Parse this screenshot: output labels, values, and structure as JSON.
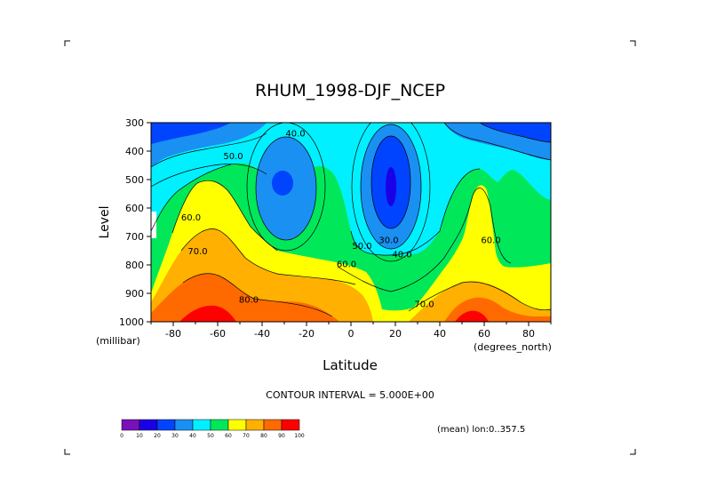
{
  "chart_data": {
    "type": "contour",
    "title": "RHUM_1998-DJF_NCEP",
    "xlabel": "Latitude",
    "ylabel": "Level",
    "x_unit": "(degrees_north)",
    "y_unit": "(millibar)",
    "xlim": [
      -90,
      90
    ],
    "ylim": [
      1000,
      300
    ],
    "x_ticks": [
      -80,
      -60,
      -40,
      -20,
      0,
      20,
      40,
      60,
      80
    ],
    "x_tick_labels": [
      "-80",
      "-60",
      "-40",
      "-20",
      "0",
      "20",
      "40",
      "60",
      "80"
    ],
    "y_ticks": [
      300,
      400,
      500,
      600,
      700,
      800,
      900,
      1000
    ],
    "y_tick_labels": [
      "300",
      "400",
      "500",
      "600",
      "700",
      "800",
      "900",
      "1000"
    ],
    "contour_interval_text": "CONTOUR INTERVAL = 5.000E+00",
    "footer_note": "(mean) lon:0..357.5",
    "contour_labels": [
      {
        "text": "40.0",
        "lat": -25,
        "level": 345
      },
      {
        "text": "50.0",
        "lat": -53,
        "level": 425
      },
      {
        "text": "60.0",
        "lat": -72,
        "level": 640
      },
      {
        "text": "70.0",
        "lat": -69,
        "level": 760
      },
      {
        "text": "80.0",
        "lat": -46,
        "level": 930
      },
      {
        "text": "50.0",
        "lat": 5,
        "level": 740
      },
      {
        "text": "60.0",
        "lat": -2,
        "level": 805
      },
      {
        "text": "30.0",
        "lat": 17,
        "level": 720
      },
      {
        "text": "40.0",
        "lat": 23,
        "level": 770
      },
      {
        "text": "70.0",
        "lat": 33,
        "level": 945
      },
      {
        "text": "60.0",
        "lat": 63,
        "level": 720
      }
    ],
    "colorbar": {
      "levels": [
        "0",
        "10",
        "20",
        "30",
        "40",
        "50",
        "60",
        "70",
        "80",
        "90",
        "100"
      ],
      "colors": [
        "#7a10b8",
        "#1a00e6",
        "#0044ff",
        "#1a90f2",
        "#00f0ff",
        "#00e85a",
        "#ffff00",
        "#ffb000",
        "#ff6a00",
        "#ff0000"
      ]
    },
    "grid": false
  }
}
